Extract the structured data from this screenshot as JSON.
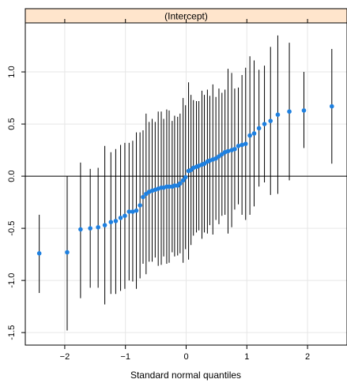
{
  "chart_data": {
    "type": "scatter",
    "strip_label": "(Intercept)",
    "xlabel": "Standard normal quantiles",
    "ylabel": "",
    "xlim": [
      -2.65,
      2.65
    ],
    "ylim": [
      -1.62,
      1.47
    ],
    "xticks": [
      -2,
      -1,
      0,
      1,
      2
    ],
    "xtick_labels": [
      "−2",
      "−1",
      "0",
      "1",
      "2"
    ],
    "yticks": [
      -1.5,
      -1.0,
      -0.5,
      0.0,
      0.5,
      1.0
    ],
    "ytick_labels": [
      "-1.5",
      "-1.0",
      "-0.5",
      "0.0",
      "0.5",
      "1.0"
    ],
    "reference_line_y": 0,
    "grid": true,
    "point_color": "#1e80e0",
    "bar_color": "#000000",
    "strip_color": "#ffe5cc",
    "points": [
      {
        "x": -2.42,
        "y": -0.74,
        "lo": -1.12,
        "hi": -0.37
      },
      {
        "x": -1.96,
        "y": -0.73,
        "lo": -1.48,
        "hi": 0.0
      },
      {
        "x": -1.74,
        "y": -0.51,
        "lo": -1.17,
        "hi": 0.13
      },
      {
        "x": -1.58,
        "y": -0.5,
        "lo": -1.07,
        "hi": 0.07
      },
      {
        "x": -1.45,
        "y": -0.49,
        "lo": -1.07,
        "hi": 0.08
      },
      {
        "x": -1.34,
        "y": -0.47,
        "lo": -1.23,
        "hi": 0.29
      },
      {
        "x": -1.24,
        "y": -0.44,
        "lo": -1.13,
        "hi": 0.23
      },
      {
        "x": -1.16,
        "y": -0.43,
        "lo": -1.13,
        "hi": 0.26
      },
      {
        "x": -1.08,
        "y": -0.4,
        "lo": -1.1,
        "hi": 0.3
      },
      {
        "x": -1.01,
        "y": -0.38,
        "lo": -1.08,
        "hi": 0.32
      },
      {
        "x": -0.94,
        "y": -0.34,
        "lo": -1.0,
        "hi": 0.32
      },
      {
        "x": -0.88,
        "y": -0.34,
        "lo": -1.01,
        "hi": 0.34
      },
      {
        "x": -0.82,
        "y": -0.33,
        "lo": -1.08,
        "hi": 0.42
      },
      {
        "x": -0.76,
        "y": -0.28,
        "lo": -0.98,
        "hi": 0.42
      },
      {
        "x": -0.71,
        "y": -0.2,
        "lo": -0.84,
        "hi": 0.44
      },
      {
        "x": -0.66,
        "y": -0.17,
        "lo": -0.94,
        "hi": 0.6
      },
      {
        "x": -0.61,
        "y": -0.15,
        "lo": -0.82,
        "hi": 0.52
      },
      {
        "x": -0.56,
        "y": -0.14,
        "lo": -0.82,
        "hi": 0.55
      },
      {
        "x": -0.51,
        "y": -0.13,
        "lo": -0.78,
        "hi": 0.52
      },
      {
        "x": -0.46,
        "y": -0.12,
        "lo": -0.86,
        "hi": 0.62
      },
      {
        "x": -0.41,
        "y": -0.11,
        "lo": -0.85,
        "hi": 0.62
      },
      {
        "x": -0.37,
        "y": -0.11,
        "lo": -0.77,
        "hi": 0.55
      },
      {
        "x": -0.32,
        "y": -0.1,
        "lo": -0.84,
        "hi": 0.64
      },
      {
        "x": -0.28,
        "y": -0.1,
        "lo": -0.83,
        "hi": 0.63
      },
      {
        "x": -0.23,
        "y": -0.1,
        "lo": -0.73,
        "hi": 0.53
      },
      {
        "x": -0.19,
        "y": -0.09,
        "lo": -0.77,
        "hi": 0.58
      },
      {
        "x": -0.14,
        "y": -0.09,
        "lo": -0.76,
        "hi": 0.57
      },
      {
        "x": -0.1,
        "y": -0.07,
        "lo": -0.74,
        "hi": 0.6
      },
      {
        "x": -0.05,
        "y": -0.04,
        "lo": -0.83,
        "hi": 0.75
      },
      {
        "x": -0.01,
        "y": -0.01,
        "lo": -0.7,
        "hi": 0.68
      },
      {
        "x": 0.04,
        "y": 0.05,
        "lo": -0.8,
        "hi": 0.9
      },
      {
        "x": 0.08,
        "y": 0.06,
        "lo": -0.66,
        "hi": 0.78
      },
      {
        "x": 0.12,
        "y": 0.08,
        "lo": -0.57,
        "hi": 0.73
      },
      {
        "x": 0.17,
        "y": 0.09,
        "lo": -0.54,
        "hi": 0.72
      },
      {
        "x": 0.21,
        "y": 0.1,
        "lo": -0.52,
        "hi": 0.72
      },
      {
        "x": 0.26,
        "y": 0.11,
        "lo": -0.6,
        "hi": 0.82
      },
      {
        "x": 0.3,
        "y": 0.12,
        "lo": -0.54,
        "hi": 0.78
      },
      {
        "x": 0.35,
        "y": 0.14,
        "lo": -0.55,
        "hi": 0.83
      },
      {
        "x": 0.39,
        "y": 0.15,
        "lo": -0.47,
        "hi": 0.77
      },
      {
        "x": 0.44,
        "y": 0.16,
        "lo": -0.56,
        "hi": 0.88
      },
      {
        "x": 0.49,
        "y": 0.17,
        "lo": -0.42,
        "hi": 0.76
      },
      {
        "x": 0.54,
        "y": 0.19,
        "lo": -0.46,
        "hi": 0.84
      },
      {
        "x": 0.59,
        "y": 0.21,
        "lo": -0.38,
        "hi": 0.8
      },
      {
        "x": 0.64,
        "y": 0.23,
        "lo": -0.37,
        "hi": 0.83
      },
      {
        "x": 0.69,
        "y": 0.24,
        "lo": -0.55,
        "hi": 1.03
      },
      {
        "x": 0.75,
        "y": 0.25,
        "lo": -0.49,
        "hi": 0.99
      },
      {
        "x": 0.8,
        "y": 0.26,
        "lo": -0.32,
        "hi": 0.84
      },
      {
        "x": 0.86,
        "y": 0.29,
        "lo": -0.27,
        "hi": 0.85
      },
      {
        "x": 0.92,
        "y": 0.3,
        "lo": -0.37,
        "hi": 0.97
      },
      {
        "x": 0.98,
        "y": 0.31,
        "lo": -0.42,
        "hi": 1.04
      },
      {
        "x": 1.05,
        "y": 0.39,
        "lo": -0.37,
        "hi": 1.15
      },
      {
        "x": 1.12,
        "y": 0.41,
        "lo": -0.29,
        "hi": 1.11
      },
      {
        "x": 1.2,
        "y": 0.46,
        "lo": -0.1,
        "hi": 1.02
      },
      {
        "x": 1.29,
        "y": 0.5,
        "lo": -0.06,
        "hi": 1.06
      },
      {
        "x": 1.39,
        "y": 0.53,
        "lo": -0.18,
        "hi": 1.24
      },
      {
        "x": 1.51,
        "y": 0.59,
        "lo": -0.17,
        "hi": 1.35
      },
      {
        "x": 1.7,
        "y": 0.62,
        "lo": -0.04,
        "hi": 1.28
      },
      {
        "x": 1.94,
        "y": 0.63,
        "lo": 0.27,
        "hi": 1.0
      },
      {
        "x": 2.4,
        "y": 0.67,
        "lo": 0.12,
        "hi": 1.22
      }
    ]
  }
}
